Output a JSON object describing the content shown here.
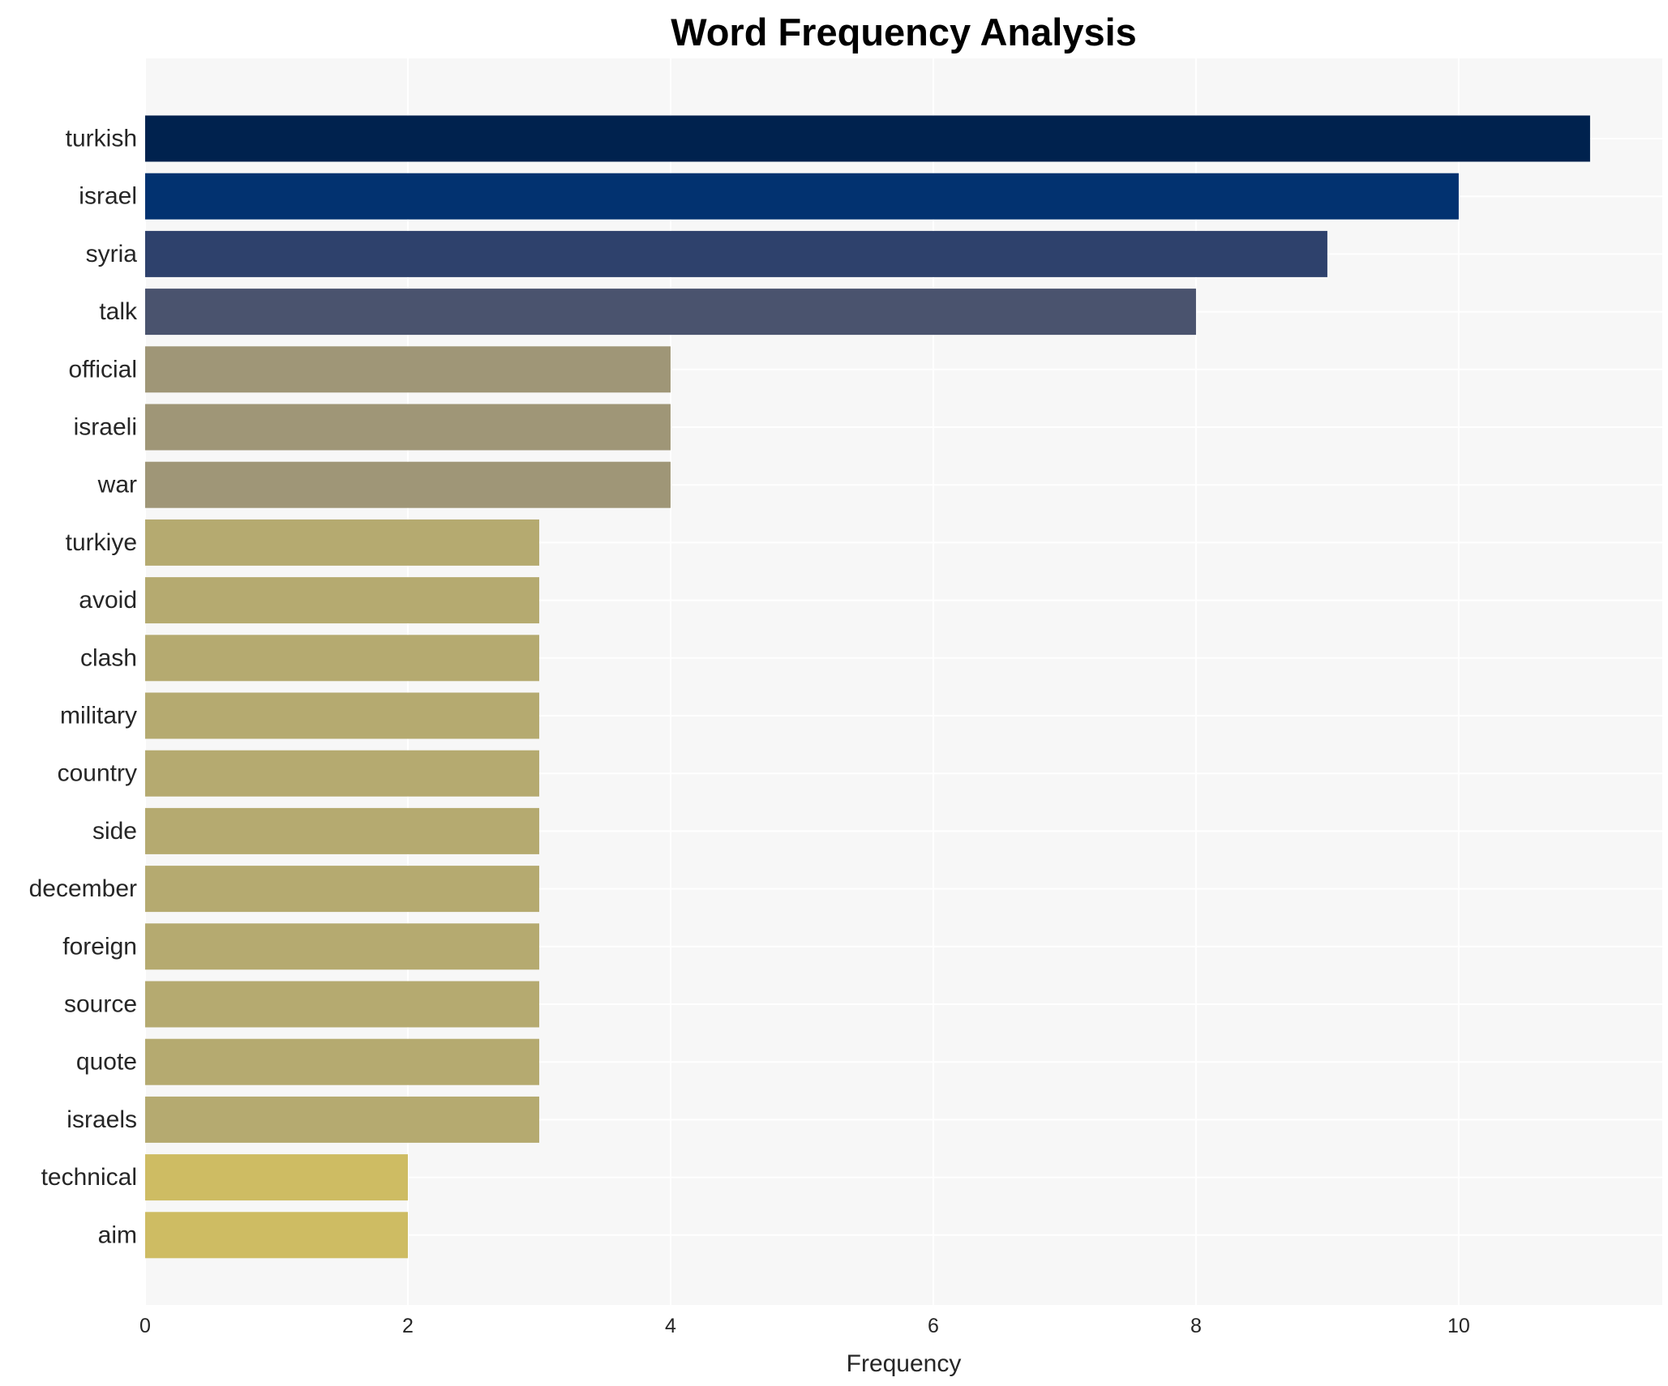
{
  "chart_data": {
    "type": "bar",
    "orientation": "horizontal",
    "title": "Word Frequency Analysis",
    "xlabel": "Frequency",
    "ylabel": "",
    "xlim": [
      0,
      11.55
    ],
    "xticks": [
      0,
      2,
      4,
      6,
      8,
      10
    ],
    "grid": true,
    "categories": [
      "turkish",
      "israel",
      "syria",
      "talk",
      "official",
      "israeli",
      "war",
      "turkiye",
      "avoid",
      "clash",
      "military",
      "country",
      "side",
      "december",
      "foreign",
      "source",
      "quote",
      "israels",
      "technical",
      "aim"
    ],
    "values": [
      11,
      10,
      9,
      8,
      4,
      4,
      4,
      3,
      3,
      3,
      3,
      3,
      3,
      3,
      3,
      3,
      3,
      3,
      2,
      2
    ],
    "colors": [
      "#00224e",
      "#023270",
      "#2e416c",
      "#4a536e",
      "#9f9677",
      "#9f9677",
      "#9f9677",
      "#b5aa70",
      "#b5aa70",
      "#b5aa70",
      "#b5aa70",
      "#b5aa70",
      "#b5aa70",
      "#b5aa70",
      "#b5aa70",
      "#b5aa70",
      "#b5aa70",
      "#b5aa70",
      "#cebc63",
      "#cebc63"
    ],
    "plot_background": "#f7f7f7",
    "grid_color": "#ffffff"
  }
}
